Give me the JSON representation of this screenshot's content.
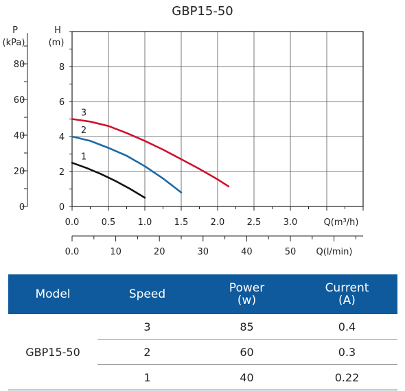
{
  "chart_data": {
    "type": "line",
    "title": "GBP15-50",
    "y_axis": {
      "label_line1": "H",
      "label_line2": "(m)",
      "ticks": [
        "0",
        "2",
        "4",
        "6",
        "8"
      ],
      "ylim": [
        0,
        10
      ]
    },
    "y2_axis": {
      "label_line1": "P",
      "label_line2": "(kPa)",
      "ticks": [
        "0",
        "20",
        "40",
        "60",
        "80"
      ]
    },
    "x_axis": {
      "label": "Q(m³/h)",
      "ticks": [
        "0.0",
        "0.5",
        "1.0",
        "1.5",
        "2.0",
        "2.5",
        "3.0"
      ],
      "xlim": [
        0,
        4
      ]
    },
    "x2_axis": {
      "label": "Q(l/min)",
      "ticks": [
        "0.0",
        "10",
        "20",
        "30",
        "40",
        "50"
      ]
    },
    "grid": true,
    "series": [
      {
        "name": "3",
        "color": "#d0112b",
        "x": [
          0.0,
          0.25,
          0.5,
          0.75,
          1.0,
          1.25,
          1.5,
          1.75,
          2.0,
          2.15
        ],
        "y": [
          5.0,
          4.85,
          4.6,
          4.2,
          3.75,
          3.25,
          2.7,
          2.15,
          1.55,
          1.15
        ]
      },
      {
        "name": "2",
        "color": "#1b6aa8",
        "x": [
          0.0,
          0.25,
          0.5,
          0.75,
          1.0,
          1.25,
          1.5
        ],
        "y": [
          4.0,
          3.75,
          3.35,
          2.9,
          2.3,
          1.6,
          0.8
        ]
      },
      {
        "name": "1",
        "color": "#111111",
        "x": [
          0.0,
          0.2,
          0.4,
          0.6,
          0.8,
          1.0
        ],
        "y": [
          2.5,
          2.2,
          1.85,
          1.45,
          1.0,
          0.5
        ]
      }
    ]
  },
  "table": {
    "headers": {
      "model": "Model",
      "speed": "Speed",
      "power_line1": "Power",
      "power_line2": "(w)",
      "current_line1": "Current",
      "current_line2": "(A)"
    },
    "model_name": "GBP15-50",
    "rows": [
      {
        "speed": "3",
        "power": "85",
        "current": "0.4"
      },
      {
        "speed": "2",
        "power": "60",
        "current": "0.3"
      },
      {
        "speed": "1",
        "power": "40",
        "current": "0.22"
      }
    ]
  }
}
